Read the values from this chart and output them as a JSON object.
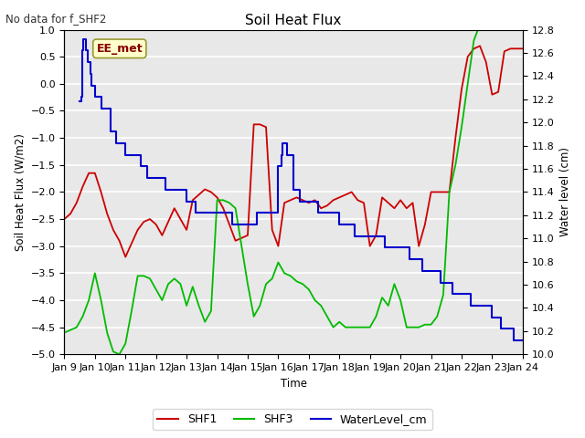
{
  "title": "Soil Heat Flux",
  "subtitle": "No data for f_SHF2",
  "xlabel": "Time",
  "ylabel_left": "Soil Heat Flux (W/m2)",
  "ylabel_right": "Water level (cm)",
  "ylim_left": [
    -5.0,
    1.0
  ],
  "ylim_right": [
    10.0,
    12.8
  ],
  "annotation_text": "EE_met",
  "background_color": "#e8e8e8",
  "grid_color": "white",
  "shf1_color": "#cc0000",
  "shf3_color": "#00bb00",
  "water_color": "#0000cc",
  "subtitle_color": "#333333",
  "x_ticks": [
    "Jan 9",
    "Jan 10",
    "Jan 11",
    "Jan 12",
    "Jan 13",
    "Jan 14",
    "Jan 15",
    "Jan 16",
    "Jan 17",
    "Jan 18",
    "Jan 19",
    "Jan 20",
    "Jan 21",
    "Jan 22",
    "Jan 23",
    "Jan 24"
  ],
  "shf1_x": [
    0.0,
    0.2,
    0.4,
    0.6,
    0.8,
    1.0,
    1.2,
    1.4,
    1.6,
    1.8,
    2.0,
    2.2,
    2.4,
    2.6,
    2.8,
    3.0,
    3.2,
    3.4,
    3.6,
    3.8,
    4.0,
    4.2,
    4.4,
    4.6,
    4.8,
    5.0,
    5.2,
    5.4,
    5.6,
    5.8,
    6.0,
    6.2,
    6.4,
    6.6,
    6.8,
    7.0,
    7.2,
    7.4,
    7.6,
    7.8,
    8.0,
    8.2,
    8.4,
    8.6,
    8.8,
    9.0,
    9.2,
    9.4,
    9.6,
    9.8,
    10.0,
    10.2,
    10.4,
    10.6,
    10.8,
    11.0,
    11.2,
    11.4,
    11.6,
    11.8,
    12.0,
    12.2,
    12.4,
    12.6,
    12.8,
    13.0,
    13.2,
    13.4,
    13.6,
    13.8,
    14.0,
    14.2,
    14.4,
    14.6,
    14.8,
    15.0
  ],
  "shf1_y": [
    -2.5,
    -2.4,
    -2.2,
    -1.9,
    -1.65,
    -1.65,
    -2.0,
    -2.4,
    -2.7,
    -2.9,
    -3.2,
    -2.95,
    -2.7,
    -2.55,
    -2.5,
    -2.6,
    -2.8,
    -2.55,
    -2.3,
    -2.5,
    -2.7,
    -2.15,
    -2.05,
    -1.95,
    -2.0,
    -2.1,
    -2.3,
    -2.6,
    -2.9,
    -2.85,
    -2.8,
    -0.75,
    -0.75,
    -0.8,
    -2.7,
    -3.0,
    -2.2,
    -2.15,
    -2.1,
    -2.15,
    -2.2,
    -2.15,
    -2.3,
    -2.25,
    -2.15,
    -2.1,
    -2.05,
    -2.0,
    -2.15,
    -2.2,
    -3.0,
    -2.8,
    -2.1,
    -2.2,
    -2.3,
    -2.15,
    -2.3,
    -2.2,
    -3.0,
    -2.6,
    -2.0,
    -2.0,
    -2.0,
    -2.0,
    -1.0,
    -0.1,
    0.5,
    0.65,
    0.7,
    0.4,
    -0.2,
    -0.15,
    0.6,
    0.65,
    0.65,
    0.65
  ],
  "shf3_x": [
    0.0,
    0.2,
    0.4,
    0.6,
    0.8,
    1.0,
    1.2,
    1.4,
    1.6,
    1.8,
    2.0,
    2.2,
    2.4,
    2.6,
    2.8,
    3.0,
    3.2,
    3.4,
    3.6,
    3.8,
    4.0,
    4.2,
    4.4,
    4.6,
    4.8,
    5.0,
    5.2,
    5.4,
    5.6,
    5.8,
    6.0,
    6.2,
    6.4,
    6.6,
    6.8,
    7.0,
    7.2,
    7.4,
    7.6,
    7.8,
    8.0,
    8.2,
    8.4,
    8.6,
    8.8,
    9.0,
    9.2,
    9.4,
    9.6,
    9.8,
    10.0,
    10.2,
    10.4,
    10.6,
    10.8,
    11.0,
    11.2,
    11.4,
    11.6,
    11.8,
    12.0,
    12.2,
    12.4,
    12.6,
    12.8,
    13.0,
    13.2,
    13.4,
    13.6,
    13.8,
    14.0,
    14.2,
    14.4,
    14.6,
    14.8,
    15.0
  ],
  "shf3_y": [
    -4.6,
    -4.55,
    -4.5,
    -4.3,
    -4.0,
    -3.5,
    -4.0,
    -4.6,
    -4.95,
    -5.0,
    -4.8,
    -4.2,
    -3.55,
    -3.55,
    -3.6,
    -3.8,
    -4.0,
    -3.7,
    -3.6,
    -3.7,
    -4.1,
    -3.75,
    -4.1,
    -4.4,
    -4.2,
    -2.15,
    -2.15,
    -2.2,
    -2.3,
    -3.0,
    -3.7,
    -4.3,
    -4.1,
    -3.7,
    -3.6,
    -3.3,
    -3.5,
    -3.55,
    -3.65,
    -3.7,
    -3.8,
    -4.0,
    -4.1,
    -4.3,
    -4.5,
    -4.4,
    -4.5,
    -4.5,
    -4.5,
    -4.5,
    -4.5,
    -4.3,
    -3.95,
    -4.1,
    -3.7,
    -4.0,
    -4.5,
    -4.5,
    -4.5,
    -4.45,
    -4.45,
    -4.3,
    -3.9,
    -2.0,
    -1.5,
    -0.8,
    0.0,
    0.8,
    1.1,
    1.1,
    1.1,
    1.05,
    1.0,
    1.05,
    1.1,
    1.1
  ],
  "water_x": [
    0.5,
    0.55,
    0.58,
    0.62,
    0.65,
    0.68,
    0.72,
    0.78,
    0.85,
    0.9,
    1.0,
    1.1,
    1.2,
    1.5,
    1.7,
    2.0,
    2.3,
    2.5,
    2.7,
    3.0,
    3.3,
    3.5,
    3.7,
    4.0,
    4.3,
    4.5,
    4.7,
    5.0,
    5.3,
    5.5,
    5.7,
    6.0,
    6.3,
    6.5,
    6.7,
    7.0,
    7.1,
    7.15,
    7.2,
    7.3,
    7.5,
    7.7,
    8.0,
    8.3,
    8.5,
    8.7,
    9.0,
    9.3,
    9.5,
    9.7,
    10.0,
    10.3,
    10.5,
    10.7,
    11.0,
    11.3,
    11.5,
    11.7,
    12.0,
    12.3,
    12.5,
    12.7,
    13.0,
    13.3,
    13.5,
    13.7,
    14.0,
    14.3,
    14.5,
    14.7,
    15.0
  ],
  "water_y": [
    12.18,
    12.22,
    12.62,
    12.72,
    12.72,
    12.72,
    12.62,
    12.52,
    12.42,
    12.32,
    12.22,
    12.22,
    12.12,
    11.92,
    11.82,
    11.72,
    11.72,
    11.62,
    11.52,
    11.52,
    11.42,
    11.42,
    11.42,
    11.32,
    11.22,
    11.22,
    11.22,
    11.22,
    11.22,
    11.12,
    11.12,
    11.12,
    11.22,
    11.22,
    11.22,
    11.62,
    11.72,
    11.82,
    11.82,
    11.72,
    11.42,
    11.32,
    11.32,
    11.22,
    11.22,
    11.22,
    11.12,
    11.12,
    11.02,
    11.02,
    11.02,
    11.02,
    10.92,
    10.92,
    10.92,
    10.82,
    10.82,
    10.72,
    10.72,
    10.62,
    10.62,
    10.52,
    10.52,
    10.42,
    10.42,
    10.42,
    10.32,
    10.22,
    10.22,
    10.12,
    10.12
  ]
}
